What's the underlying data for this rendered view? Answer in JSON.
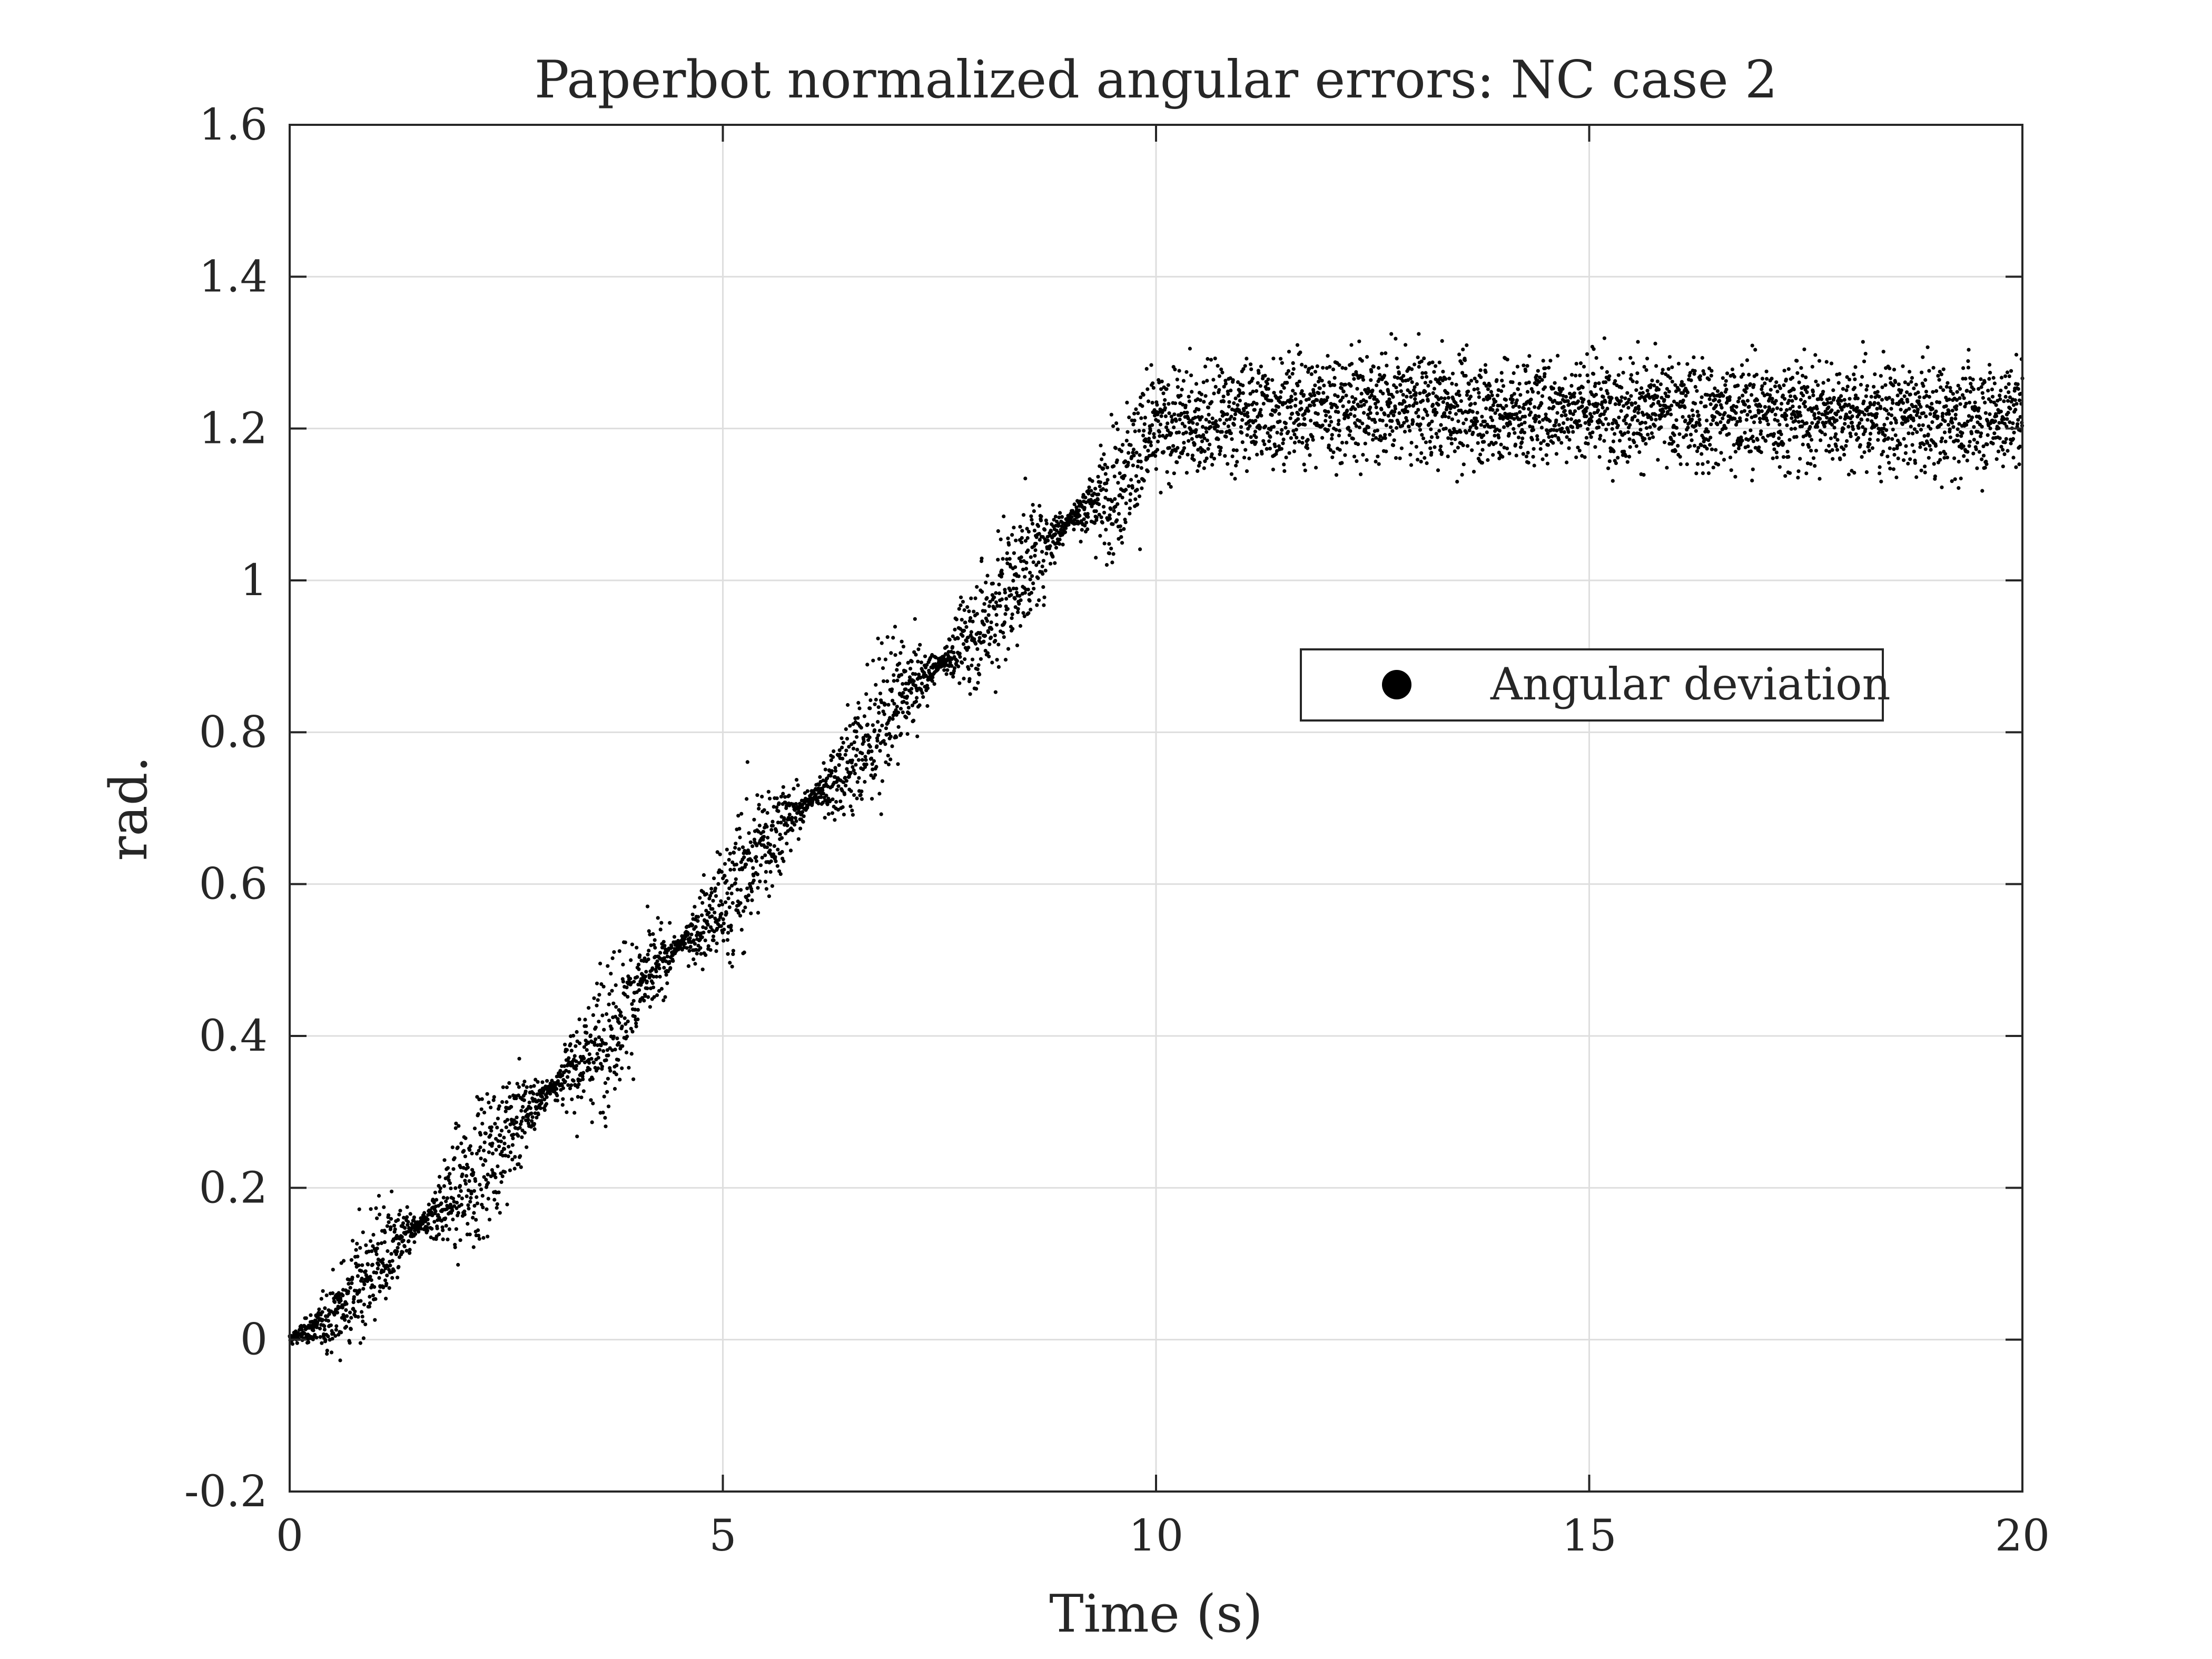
{
  "chart_data": {
    "type": "scatter",
    "title": "Paperbot normalized angular errors: NC case 2",
    "xlabel": "Time (s)",
    "ylabel": "rad.",
    "xlim": [
      0,
      20
    ],
    "ylim": [
      -0.2,
      1.6
    ],
    "x_ticks": [
      "0",
      "5",
      "10",
      "15",
      "20"
    ],
    "y_ticks": [
      "-0.2",
      "0",
      "0.2",
      "0.4",
      "0.6",
      "0.8",
      "1",
      "1.2",
      "1.4",
      "1.6"
    ],
    "grid": true,
    "legend": {
      "position": "right-middle",
      "entries": [
        "Angular deviation"
      ]
    },
    "marker_color": "#000000",
    "series": [
      {
        "name": "Angular deviation",
        "description_points": {
          "x": [
            0,
            0.5,
            1,
            1.5,
            2,
            2.5,
            3,
            3.5,
            4,
            4.5,
            5,
            5.5,
            6,
            6.5,
            7,
            7.5,
            8,
            8.5,
            9,
            9.5,
            10,
            11,
            12,
            13,
            14,
            15,
            16,
            17,
            18,
            19,
            20
          ],
          "y": [
            0,
            0.03,
            0.1,
            0.15,
            0.2,
            0.27,
            0.33,
            0.38,
            0.46,
            0.52,
            0.57,
            0.66,
            0.71,
            0.76,
            0.84,
            0.89,
            0.94,
            1.02,
            1.08,
            1.12,
            1.2,
            1.22,
            1.23,
            1.23,
            1.22,
            1.23,
            1.22,
            1.22,
            1.22,
            1.21,
            1.22
          ]
        }
      }
    ]
  }
}
